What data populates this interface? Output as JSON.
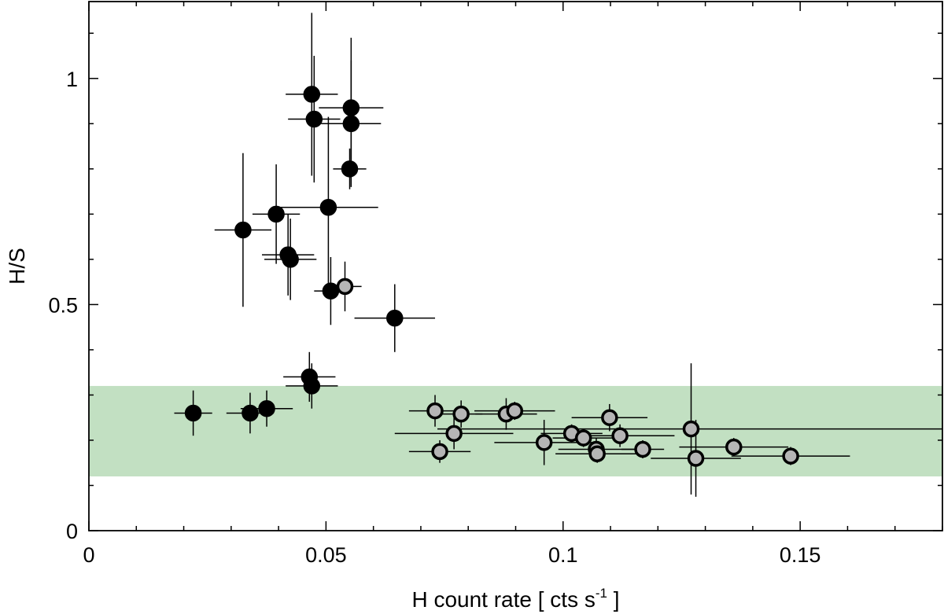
{
  "chart_data": {
    "type": "scatter",
    "title": "",
    "xlabel": "H count rate [ cts s",
    "xlabel_sup": "-1",
    "xlabel_tail": " ]",
    "ylabel": "H/S",
    "xlim": [
      0,
      0.18
    ],
    "ylim": [
      0,
      1.17
    ],
    "x_ticks": [
      0,
      0.05,
      0.1,
      0.15
    ],
    "x_tick_labels": [
      "0",
      "0.05",
      "0.1",
      "0.15"
    ],
    "y_ticks": [
      0,
      0.5,
      1
    ],
    "y_tick_labels": [
      "0",
      "0.5",
      "1"
    ],
    "x_minor_step": 0.01,
    "y_minor_step": 0.1,
    "grid": false,
    "band": {
      "y_low": 0.12,
      "y_high": 0.32,
      "color": "#c2e0c2"
    },
    "series": [
      {
        "marker_fill": "#000000",
        "marker_edge": "#000000",
        "points": [
          {
            "x": 0.022,
            "y": 0.26,
            "xerr": 0.004,
            "yerr": 0.05
          },
          {
            "x": 0.034,
            "y": 0.26,
            "xerr": 0.005,
            "yerr": 0.045
          },
          {
            "x": 0.0375,
            "y": 0.27,
            "xerr": 0.0055,
            "yerr": 0.04
          },
          {
            "x": 0.0325,
            "y": 0.665,
            "xerr": 0.006,
            "yerr": 0.17
          },
          {
            "x": 0.0395,
            "y": 0.7,
            "xerr": 0.005,
            "yerr": 0.11
          },
          {
            "x": 0.042,
            "y": 0.61,
            "xerr": 0.0055,
            "yerr": 0.09
          },
          {
            "x": 0.0425,
            "y": 0.6,
            "xerr": 0.0055,
            "yerr": 0.09
          },
          {
            "x": 0.0465,
            "y": 0.34,
            "xerr": 0.0055,
            "yerr": 0.055
          },
          {
            "x": 0.047,
            "y": 0.32,
            "xerr": 0.0055,
            "yerr": 0.05
          },
          {
            "x": 0.047,
            "y": 0.965,
            "xerr": 0.0055,
            "yerr": 0.18
          },
          {
            "x": 0.0475,
            "y": 0.91,
            "xerr": 0.0055,
            "yerr": 0.14
          },
          {
            "x": 0.0505,
            "y": 0.715,
            "xerr": 0.0105,
            "yerr": 0.2
          },
          {
            "x": 0.051,
            "y": 0.53,
            "xerr": 0.0035,
            "yerr": 0.075
          },
          {
            "x": 0.055,
            "y": 0.8,
            "xerr": 0.0035,
            "yerr": 0.045
          },
          {
            "x": 0.0553,
            "y": 0.935,
            "xerr": 0.0068,
            "yerr": 0.155
          },
          {
            "x": 0.0553,
            "y": 0.9,
            "xerr": 0.0063,
            "yerr": 0.14
          },
          {
            "x": 0.0645,
            "y": 0.47,
            "xerr": 0.0085,
            "yerr": 0.075
          }
        ]
      },
      {
        "marker_fill": "#b5b5b5",
        "marker_edge": "#000000",
        "points": [
          {
            "x": 0.054,
            "y": 0.54,
            "xerr": 0.0035,
            "yerr": 0.055
          },
          {
            "x": 0.073,
            "y": 0.265,
            "xerr": 0.0055,
            "yerr": 0.035
          },
          {
            "x": 0.074,
            "y": 0.175,
            "xerr": 0.0065,
            "yerr": 0.025
          },
          {
            "x": 0.077,
            "y": 0.215,
            "xerr": 0.0125,
            "yerr": 0.035
          },
          {
            "x": 0.0785,
            "y": 0.258,
            "xerr": 0.0045,
            "yerr": 0.03
          },
          {
            "x": 0.088,
            "y": 0.258,
            "xerr": 0.0065,
            "yerr": 0.035
          },
          {
            "x": 0.0898,
            "y": 0.265,
            "xerr": 0.0085,
            "yerr": 0.02
          },
          {
            "x": 0.096,
            "y": 0.195,
            "xerr": 0.0105,
            "yerr": 0.05
          },
          {
            "x": 0.1018,
            "y": 0.215,
            "xerr": 0.0065,
            "yerr": 0.02
          },
          {
            "x": 0.1043,
            "y": 0.205,
            "xerr": 0.0065,
            "yerr": 0.02
          },
          {
            "x": 0.107,
            "y": 0.18,
            "xerr": 0.008,
            "yerr": 0.025
          },
          {
            "x": 0.1072,
            "y": 0.17,
            "xerr": 0.0088,
            "yerr": 0.02
          },
          {
            "x": 0.1098,
            "y": 0.25,
            "xerr": 0.008,
            "yerr": 0.03
          },
          {
            "x": 0.112,
            "y": 0.21,
            "xerr": 0.0115,
            "yerr": 0.025
          },
          {
            "x": 0.1168,
            "y": 0.18,
            "xerr": 0.0045,
            "yerr": 0.02
          },
          {
            "x": 0.127,
            "y": 0.225,
            "xerr": 0.0535,
            "yerr": 0.145
          },
          {
            "x": 0.128,
            "y": 0.16,
            "xerr": 0.0095,
            "yerr": 0.085
          },
          {
            "x": 0.136,
            "y": 0.185,
            "xerr": 0.0115,
            "yerr": 0.02
          },
          {
            "x": 0.148,
            "y": 0.165,
            "xerr": 0.0125,
            "yerr": 0.02
          }
        ]
      }
    ]
  }
}
